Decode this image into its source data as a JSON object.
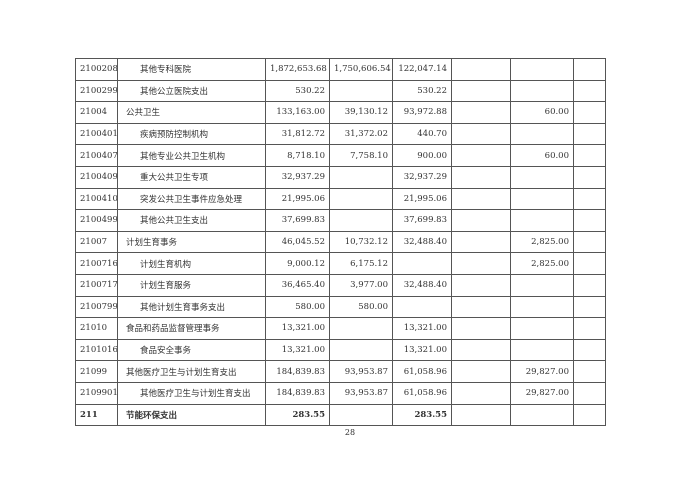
{
  "rows": [
    {
      "code": "2100208",
      "name": "其他专科医院",
      "level": 2,
      "c3": "1,872,653.68",
      "c4": "1,750,606.54",
      "c5": "122,047.14",
      "c6": "",
      "c7": "",
      "c8": ""
    },
    {
      "code": "2100299",
      "name": "其他公立医院支出",
      "level": 2,
      "c3": "530.22",
      "c4": "",
      "c5": "530.22",
      "c6": "",
      "c7": "",
      "c8": ""
    },
    {
      "code": "21004",
      "name": "公共卫生",
      "level": 1,
      "c3": "133,163.00",
      "c4": "39,130.12",
      "c5": "93,972.88",
      "c6": "",
      "c7": "60.00",
      "c8": ""
    },
    {
      "code": "2100401",
      "name": "疾病预防控制机构",
      "level": 2,
      "c3": "31,812.72",
      "c4": "31,372.02",
      "c5": "440.70",
      "c6": "",
      "c7": "",
      "c8": ""
    },
    {
      "code": "2100407",
      "name": "其他专业公共卫生机构",
      "level": 2,
      "c3": "8,718.10",
      "c4": "7,758.10",
      "c5": "900.00",
      "c6": "",
      "c7": "60.00",
      "c8": ""
    },
    {
      "code": "2100409",
      "name": "重大公共卫生专项",
      "level": 2,
      "c3": "32,937.29",
      "c4": "",
      "c5": "32,937.29",
      "c6": "",
      "c7": "",
      "c8": ""
    },
    {
      "code": "2100410",
      "name": "突发公共卫生事件应急处理",
      "level": 2,
      "c3": "21,995.06",
      "c4": "",
      "c5": "21,995.06",
      "c6": "",
      "c7": "",
      "c8": ""
    },
    {
      "code": "2100499",
      "name": "其他公共卫生支出",
      "level": 2,
      "c3": "37,699.83",
      "c4": "",
      "c5": "37,699.83",
      "c6": "",
      "c7": "",
      "c8": ""
    },
    {
      "code": "21007",
      "name": "计划生育事务",
      "level": 1,
      "c3": "46,045.52",
      "c4": "10,732.12",
      "c5": "32,488.40",
      "c6": "",
      "c7": "2,825.00",
      "c8": ""
    },
    {
      "code": "2100716",
      "name": "计划生育机构",
      "level": 2,
      "c3": "9,000.12",
      "c4": "6,175.12",
      "c5": "",
      "c6": "",
      "c7": "2,825.00",
      "c8": ""
    },
    {
      "code": "2100717",
      "name": "计划生育服务",
      "level": 2,
      "c3": "36,465.40",
      "c4": "3,977.00",
      "c5": "32,488.40",
      "c6": "",
      "c7": "",
      "c8": ""
    },
    {
      "code": "2100799",
      "name": "其他计划生育事务支出",
      "level": 2,
      "c3": "580.00",
      "c4": "580.00",
      "c5": "",
      "c6": "",
      "c7": "",
      "c8": ""
    },
    {
      "code": "21010",
      "name": "食品和药品监督管理事务",
      "level": 1,
      "c3": "13,321.00",
      "c4": "",
      "c5": "13,321.00",
      "c6": "",
      "c7": "",
      "c8": ""
    },
    {
      "code": "2101016",
      "name": "食品安全事务",
      "level": 2,
      "c3": "13,321.00",
      "c4": "",
      "c5": "13,321.00",
      "c6": "",
      "c7": "",
      "c8": ""
    },
    {
      "code": "21099",
      "name": "其他医疗卫生与计划生育支出",
      "level": 1,
      "c3": "184,839.83",
      "c4": "93,953.87",
      "c5": "61,058.96",
      "c6": "",
      "c7": "29,827.00",
      "c8": ""
    },
    {
      "code": "2109901",
      "name": "其他医疗卫生与计划生育支出",
      "level": 2,
      "c3": "184,839.83",
      "c4": "93,953.87",
      "c5": "61,058.96",
      "c6": "",
      "c7": "29,827.00",
      "c8": ""
    },
    {
      "code": "211",
      "name": "节能环保支出",
      "level": 0,
      "c3": "283.55",
      "c4": "",
      "c5": "283.55",
      "c6": "",
      "c7": "",
      "c8": ""
    }
  ],
  "page_number": "28"
}
